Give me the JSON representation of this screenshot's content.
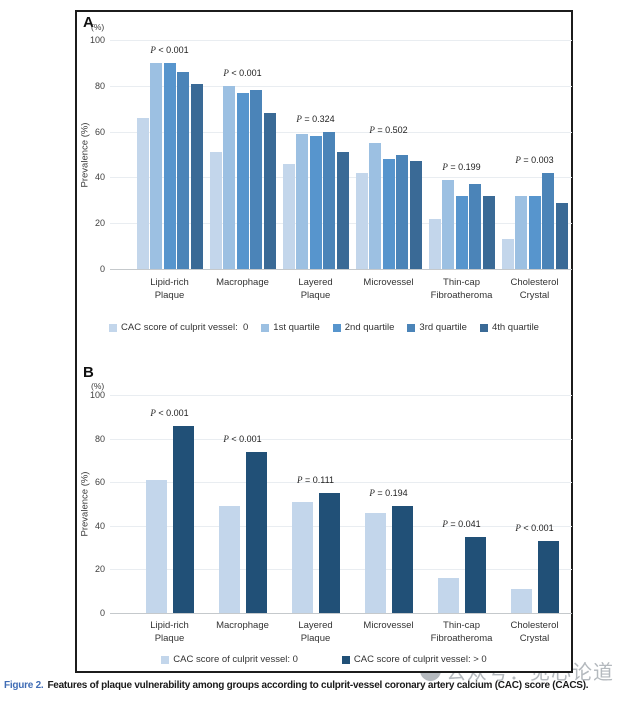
{
  "figure_caption": {
    "label": "Figure 2.",
    "text": "Features of plaque vulnerability among groups according to culprit-vessel coronary artery calcium (CAC) score (CACS)."
  },
  "watermark": {
    "text": "公众号：见心论道"
  },
  "colors": {
    "quartile_palette": [
      "#c3d6eb",
      "#9cc0e2",
      "#5795cd",
      "#4b84b8",
      "#3a6a96"
    ],
    "binary_palette": [
      "#c3d6eb",
      "#215077"
    ],
    "caption_label_blue": "#3f6cb5",
    "gridline": "#e9edf1",
    "axis_line": "#c5c9cc"
  },
  "chart_data": [
    {
      "panel": "A",
      "type": "bar",
      "ylabel": "Prevalence (%)",
      "y_unit": "(%)",
      "ylim": [
        0,
        100
      ],
      "yticks": [
        0,
        20,
        40,
        60,
        80,
        100
      ],
      "grid": true,
      "legend_position": "bottom",
      "categories": [
        [
          "Lipid-rich",
          "Plaque"
        ],
        [
          "Macrophage"
        ],
        [
          "Layered",
          "Plaque"
        ],
        [
          "Microvessel"
        ],
        [
          "Thin-cap",
          "Fibroatheroma"
        ],
        [
          "Cholesterol",
          "Crystal"
        ]
      ],
      "p_values": [
        "P < 0.001",
        "P < 0.001",
        "P = 0.324",
        "P = 0.502",
        "P = 0.199",
        "P = 0.003"
      ],
      "series": [
        {
          "name": "CAC score of culprit vessel:  0",
          "color": "#c3d6eb",
          "values": [
            66,
            51,
            46,
            42,
            22,
            13
          ]
        },
        {
          "name": "1st quartile",
          "color": "#9cc0e2",
          "values": [
            90,
            80,
            59,
            55,
            39,
            32
          ]
        },
        {
          "name": "2nd quartile",
          "color": "#5795cd",
          "values": [
            90,
            77,
            58,
            48,
            32,
            32
          ]
        },
        {
          "name": "3rd quartile",
          "color": "#4b84b8",
          "values": [
            86,
            78,
            60,
            50,
            37,
            42
          ]
        },
        {
          "name": "4th quartile",
          "color": "#3a6a96",
          "values": [
            81,
            68,
            51,
            47,
            32,
            29
          ]
        }
      ]
    },
    {
      "panel": "B",
      "type": "bar",
      "ylabel": "Prevalence (%)",
      "y_unit": "(%)",
      "ylim": [
        0,
        100
      ],
      "yticks": [
        0,
        20,
        40,
        60,
        80,
        100
      ],
      "grid": true,
      "legend_position": "bottom",
      "categories": [
        [
          "Lipid-rich",
          "Plaque"
        ],
        [
          "Macrophage"
        ],
        [
          "Layered",
          "Plaque"
        ],
        [
          "Microvessel"
        ],
        [
          "Thin-cap",
          "Fibroatheroma"
        ],
        [
          "Cholesterol",
          "Crystal"
        ]
      ],
      "p_values": [
        "P < 0.001",
        "P < 0.001",
        "P = 0.111",
        "P = 0.194",
        "P = 0.041",
        "P < 0.001"
      ],
      "series": [
        {
          "name": "CAC score of culprit vessel: 0",
          "color": "#c3d6eb",
          "values": [
            61,
            49,
            51,
            46,
            16,
            11
          ]
        },
        {
          "name": "CAC score of culprit vessel: > 0",
          "color": "#215077",
          "values": [
            86,
            74,
            55,
            49,
            35,
            33
          ]
        }
      ]
    }
  ]
}
